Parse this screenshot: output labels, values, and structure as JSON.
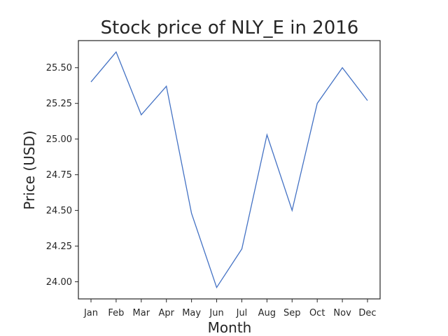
{
  "chart_data": {
    "type": "line",
    "title": "Stock price of NLY_E in 2016",
    "xlabel": "Month",
    "ylabel": "Price (USD)",
    "categories": [
      "Jan",
      "Feb",
      "Mar",
      "Apr",
      "May",
      "Jun",
      "Jul",
      "Aug",
      "Sep",
      "Oct",
      "Nov",
      "Dec"
    ],
    "series": [
      {
        "name": "NLY_E",
        "values": [
          25.4,
          25.61,
          25.17,
          25.37,
          24.48,
          23.96,
          24.23,
          25.03,
          24.5,
          25.25,
          25.5,
          25.27
        ]
      }
    ],
    "yticks": [
      24.0,
      24.25,
      24.5,
      24.75,
      25.0,
      25.25,
      25.5
    ],
    "ytick_labels": [
      "24.00",
      "24.25",
      "24.50",
      "24.75",
      "25.00",
      "25.25",
      "25.50"
    ],
    "ylim": [
      23.88,
      25.69
    ],
    "grid": false,
    "legend": "none",
    "colors": {
      "line": "#4472c4",
      "axes": "#262626",
      "text": "#262626"
    }
  }
}
